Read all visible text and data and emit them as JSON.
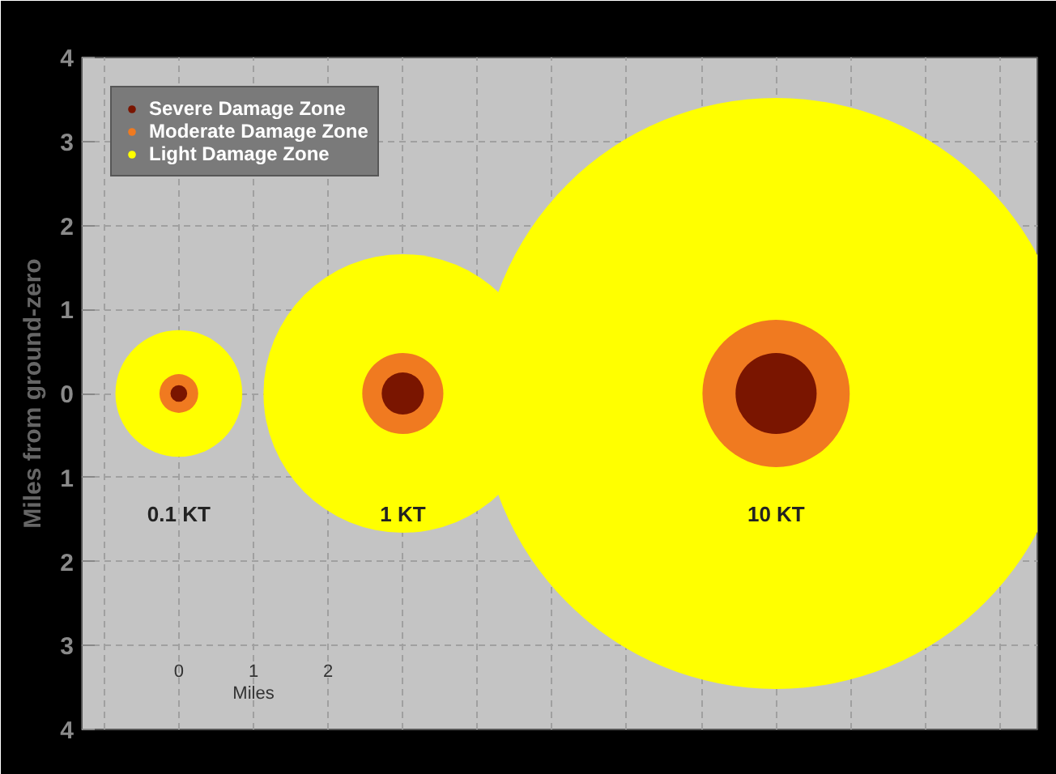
{
  "chart_data": {
    "type": "bubble",
    "ylabel": "Miles from ground-zero",
    "xlim": [
      -1.3,
      11.5
    ],
    "ylim": [
      -4,
      4
    ],
    "xlabel": "Miles",
    "xticks": [
      0,
      1,
      2
    ],
    "yticks": [
      {
        "value": -4,
        "label": "4"
      },
      {
        "value": -3,
        "label": "3"
      },
      {
        "value": -2,
        "label": "2"
      },
      {
        "value": -1,
        "label": "1"
      },
      0,
      1,
      2,
      3,
      4
    ],
    "grid": true,
    "legend": "top left",
    "marker": "circle",
    "x": [
      0,
      3,
      8
    ],
    "series": [
      {
        "name": "Severe Damage Zone",
        "color": "#7a1500",
        "values": [
          0,
          0,
          0
        ],
        "sizes": [
          0.0008,
          0.0051,
          0.0188
        ]
      },
      {
        "name": "Moderate Damage Zone",
        "color": "#f07a20",
        "values": [
          0,
          0,
          0
        ],
        "sizes": [
          0.0043,
          0.0188,
          0.062
        ]
      },
      {
        "name": "Light Damage Zone",
        "color": "#ffff00",
        "values": [
          0,
          0,
          0
        ],
        "sizes": [
          0.046,
          0.222,
          1
        ]
      }
    ],
    "annotations": [
      "0.1 KT",
      "1 KT",
      "10 KT"
    ]
  }
}
